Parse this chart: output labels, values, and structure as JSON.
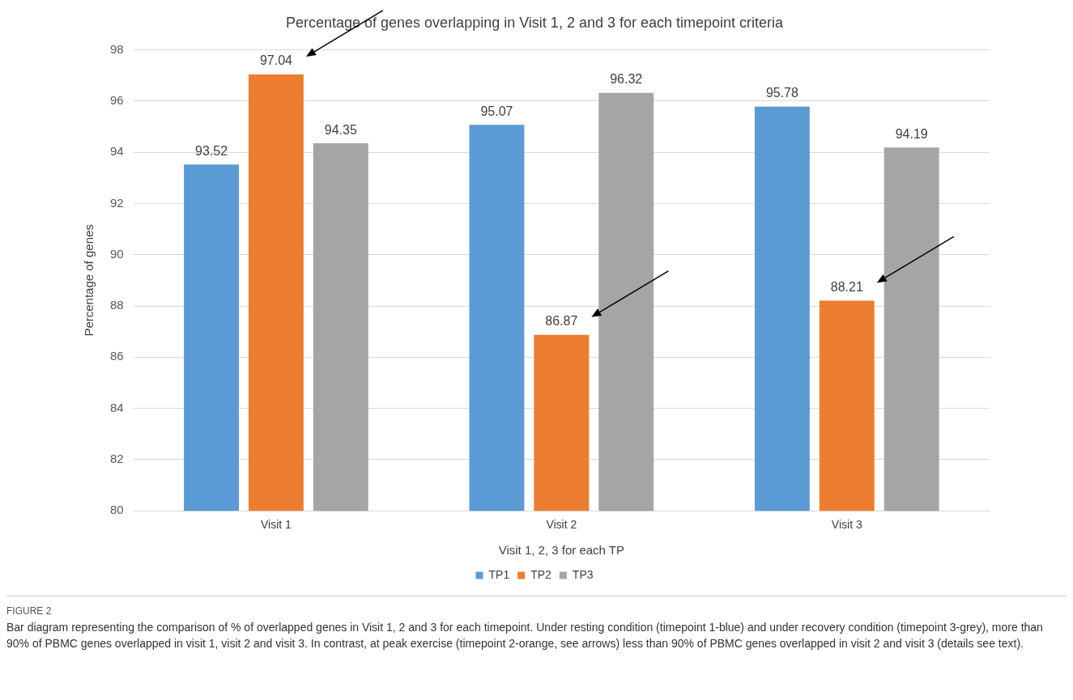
{
  "chart_data": {
    "type": "bar",
    "title": "Percentage of genes overlapping in Visit 1, 2 and 3 for each timepoint criteria",
    "xlabel": "Visit 1, 2, 3 for each TP",
    "ylabel": "Percentage of genes",
    "categories": [
      "Visit 1",
      "Visit 2",
      "Visit 3"
    ],
    "series": [
      {
        "name": "TP1",
        "color": "#5b9bd5",
        "values": [
          93.52,
          95.07,
          95.78
        ]
      },
      {
        "name": "TP2",
        "color": "#ed7d31",
        "values": [
          97.04,
          86.87,
          88.21
        ]
      },
      {
        "name": "TP3",
        "color": "#a5a5a5",
        "values": [
          94.35,
          96.32,
          94.19
        ]
      }
    ],
    "ylim": [
      80,
      98
    ],
    "yticks": [
      80,
      82,
      84,
      86,
      88,
      90,
      92,
      94,
      96,
      98
    ],
    "grid": "y",
    "legend": "bottom",
    "data_labels": true,
    "annotations": [
      "FIGURE 2",
      "Bar diagram representing the comparison of % of overlapped genes in Visit 1, 2 and 3 for each timepoint. Under resting condition (timepoint 1-blue) and under recovery condition (timepoint 3-grey), more than 90% of PBMC genes overlapped in visit 1, visit 2 and visit 3. In contrast, at peak exercise (timepoint 2-orange, see arrows) less than 90% of PBMC genes overlapped in visit 2 and visit 3 (details see text)."
    ]
  }
}
